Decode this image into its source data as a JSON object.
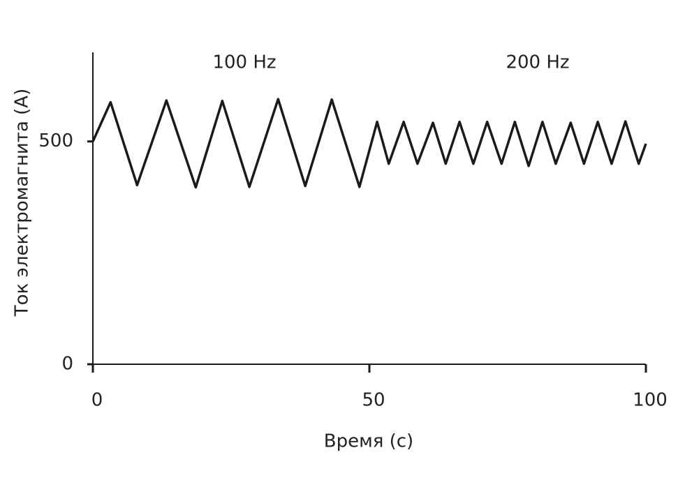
{
  "chart_data": {
    "type": "line",
    "x_label": "Время (с)",
    "y_label": "Ток электромагнита (А)",
    "annotations": [
      "100 Hz",
      "200 Hz"
    ],
    "x": [
      0,
      3.2,
      8.0,
      13.3,
      18.6,
      23.4,
      28.3,
      33.5,
      38.4,
      43.2,
      48.2,
      51.4,
      53.5,
      56.2,
      58.7,
      61.5,
      63.8,
      66.3,
      68.8,
      71.3,
      73.9,
      76.3,
      78.8,
      81.3,
      83.7,
      86.4,
      88.8,
      91.3,
      93.8,
      96.3,
      98.7,
      100
    ],
    "series": [
      {
        "color": "#1a1a1a",
        "values": [
          500,
          588,
          402,
          592,
          397,
          591,
          398,
          595,
          400,
          594,
          398,
          544,
          450,
          544,
          450,
          542,
          450,
          544,
          450,
          544,
          450,
          544,
          445,
          544,
          450,
          542,
          450,
          544,
          450,
          545,
          450,
          495
        ]
      }
    ],
    "xlim": [
      0,
      100
    ],
    "xticks": [
      0,
      50,
      100
    ],
    "ylim": [
      0,
      700
    ],
    "yticks": [
      0,
      500
    ]
  }
}
